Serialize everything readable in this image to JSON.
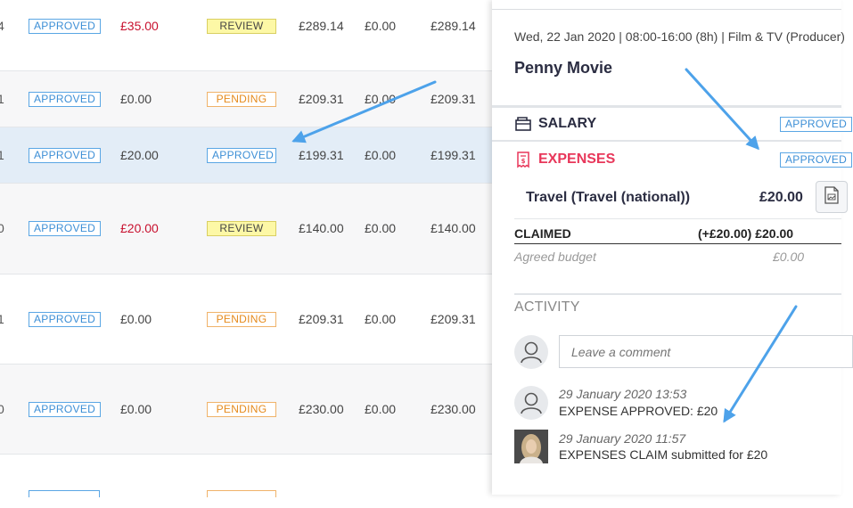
{
  "table": {
    "rows": [
      {
        "id": "4",
        "status": "APPROVED",
        "expenses": "£35.00",
        "expenses_red": true,
        "expense_status": "REVIEW",
        "total": "£289.14",
        "paid": "£0.00",
        "due": "£289.14"
      },
      {
        "id": "1",
        "status": "APPROVED",
        "expenses": "£0.00",
        "expenses_red": false,
        "expense_status": "PENDING",
        "total": "£209.31",
        "paid": "£0.00",
        "due": "£209.31"
      },
      {
        "id": "1",
        "status": "APPROVED",
        "expenses": "£20.00",
        "expenses_red": false,
        "expense_status": "APPROVED",
        "total": "£199.31",
        "paid": "£0.00",
        "due": "£199.31"
      },
      {
        "id": "0",
        "status": "APPROVED",
        "expenses": "£20.00",
        "expenses_red": true,
        "expense_status": "REVIEW",
        "total": "£140.00",
        "paid": "£0.00",
        "due": "£140.00"
      },
      {
        "id": "1",
        "status": "APPROVED",
        "expenses": "£0.00",
        "expenses_red": false,
        "expense_status": "PENDING",
        "total": "£209.31",
        "paid": "£0.00",
        "due": "£209.31"
      },
      {
        "id": "0",
        "status": "APPROVED",
        "expenses": "£0.00",
        "expenses_red": false,
        "expense_status": "PENDING",
        "total": "£230.00",
        "paid": "£0.00",
        "due": "£230.00"
      }
    ]
  },
  "panel": {
    "meta": "Wed, 22 Jan 2020 | 08:00-16:00 (8h) | Film & TV (Producer)",
    "title": "Penny Movie",
    "salary": {
      "label": "SALARY",
      "status": "APPROVED",
      "icon": "wallet-icon"
    },
    "expenses": {
      "label": "EXPENSES",
      "status": "APPROVED",
      "icon": "receipt-icon"
    },
    "line_item": {
      "name": "Travel (Travel (national))",
      "amount": "£20.00"
    },
    "claimed": {
      "label": "CLAIMED",
      "value": "(+£20.00) £20.00"
    },
    "budget": {
      "label": "Agreed budget",
      "value": "£0.00"
    },
    "activity": {
      "title": "ACTIVITY",
      "comment_placeholder": "Leave a comment",
      "entries": [
        {
          "time": "29 January 2020 13:53",
          "text": "EXPENSE APPROVED: £20"
        },
        {
          "time": "29 January 2020 11:57",
          "text": "EXPENSES CLAIM submitted for £20"
        }
      ]
    }
  },
  "colors": {
    "accent_blue": "#3d8fd6",
    "expenses_red": "#e8375a",
    "review_yellow": "#fdf8a6",
    "pending_orange": "#e58a1c",
    "arrow_blue": "#4da2ea"
  }
}
